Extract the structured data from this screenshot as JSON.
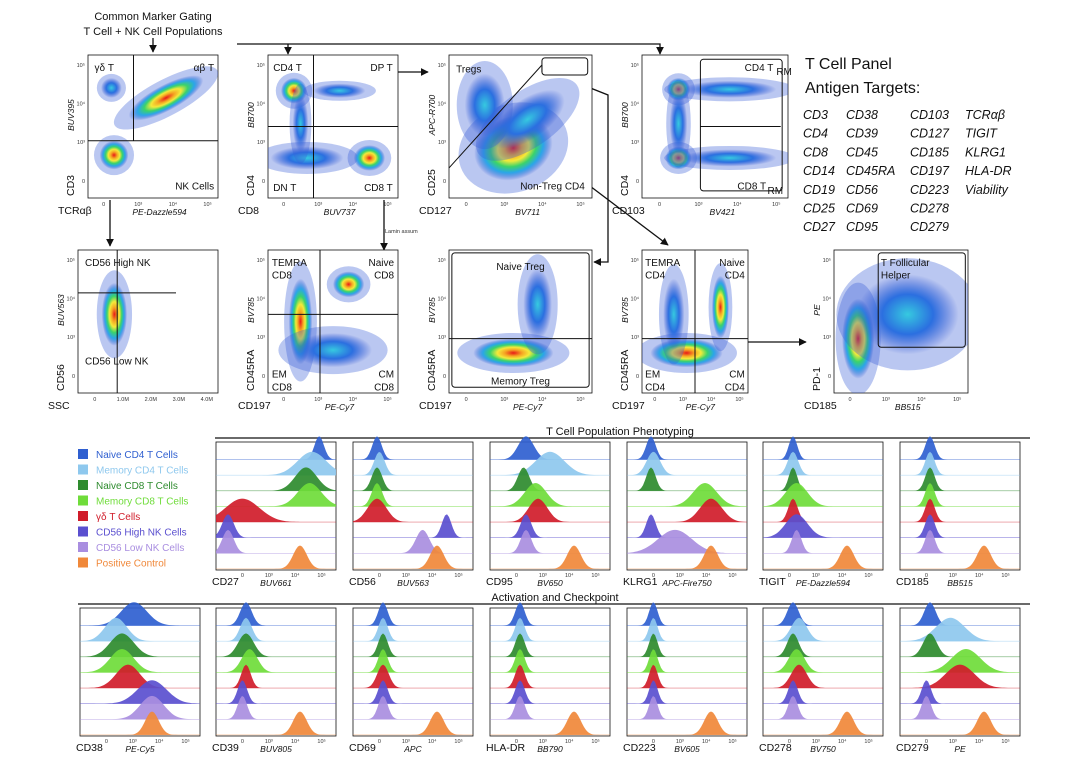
{
  "header": {
    "line1": "Common Marker Gating",
    "line2": "T Cell + NK Cell Populations"
  },
  "gating_panels": [
    {
      "id": "p1",
      "y_label": "CD3",
      "y_fluor": "BUV395",
      "x_label": "TCRαβ",
      "x_fluor": "PE-Dazzle594",
      "gates": [
        "γδ T",
        "αβ T",
        "NK Cells"
      ]
    },
    {
      "id": "p2",
      "y_label": "CD4",
      "y_fluor": "BB700",
      "x_label": "CD8",
      "x_fluor": "BUV737",
      "gates": [
        "CD4 T",
        "DP T",
        "DN T",
        "CD8 T"
      ]
    },
    {
      "id": "p3",
      "y_label": "CD25",
      "y_fluor": "APC-R700",
      "x_label": "CD127",
      "x_fluor": "BV711",
      "gates": [
        "Tregs",
        "Non-Treg CD4"
      ]
    },
    {
      "id": "p4",
      "y_label": "CD4",
      "y_fluor": "BB700",
      "x_label": "CD103",
      "x_fluor": "BV421",
      "gates": [
        "CD4 T",
        "RM",
        "CD8 T",
        "RM"
      ]
    },
    {
      "id": "p5",
      "y_label": "CD56",
      "y_fluor": "BUV563",
      "x_label": "SSC",
      "x_fluor": "",
      "gates": [
        "CD56 High NK",
        "CD56 Low NK"
      ]
    },
    {
      "id": "p6",
      "y_label": "CD45RA",
      "y_fluor": "BV785",
      "x_label": "CD197",
      "x_fluor": "PE-Cy7",
      "gates": [
        "TEMRA",
        "CD8",
        "Naive",
        "CD8",
        "EM",
        "CD8",
        "CM",
        "CD8"
      ]
    },
    {
      "id": "p7",
      "y_label": "CD45RA",
      "y_fluor": "BV785",
      "x_label": "CD197",
      "x_fluor": "PE-Cy7",
      "gates": [
        "Naive Treg",
        "Memory Treg"
      ]
    },
    {
      "id": "p8",
      "y_label": "CD45RA",
      "y_fluor": "BV785",
      "x_label": "CD197",
      "x_fluor": "PE-Cy7",
      "gates": [
        "TEMRA",
        "CD4",
        "Naive",
        "CD4",
        "EM",
        "CD4",
        "CM",
        "CD4"
      ]
    },
    {
      "id": "p9",
      "y_label": "PD-1",
      "y_fluor": "PE",
      "x_label": "CD185",
      "x_fluor": "BB515",
      "gates": [
        "T Follicular",
        "Helper"
      ]
    }
  ],
  "ticks": {
    "log": [
      "0",
      "10³",
      "10⁴",
      "10⁵"
    ],
    "ssc": [
      "0",
      "1.0M",
      "2.0M",
      "3.0M",
      "4.0M"
    ]
  },
  "tiny_label": "Lamin assum",
  "antigen_panel": {
    "title1": "T Cell Panel",
    "title2": "Antigen Targets:",
    "columns": [
      [
        "CD3",
        "CD4",
        "CD8",
        "CD14",
        "CD19",
        "CD25",
        "CD27"
      ],
      [
        "CD38",
        "CD39",
        "CD45",
        "CD45RA",
        "CD56",
        "CD69",
        "CD95"
      ],
      [
        "CD103",
        "CD127",
        "CD185",
        "CD197",
        "CD223",
        "CD278",
        "CD279"
      ],
      [
        "TCRαβ",
        "TIGIT",
        "KLRG1",
        "HLA-DR",
        "Viability"
      ]
    ]
  },
  "legend": [
    {
      "label": "Naive CD4 T Cells",
      "color": "#2f5fd0"
    },
    {
      "label": "Memory CD4 T Cells",
      "color": "#8ec8ee"
    },
    {
      "label": "Naive CD8 T Cells",
      "color": "#2e8b2e"
    },
    {
      "label": "Memory CD8 T Cells",
      "color": "#6fdc3a"
    },
    {
      "label": "γδ T Cells",
      "color": "#d01c2a"
    },
    {
      "label": "CD56 High NK Cells",
      "color": "#5a4fcf"
    },
    {
      "label": "CD56 Low NK Cells",
      "color": "#a98ee0"
    },
    {
      "label": "Positive Control",
      "color": "#f0883a"
    }
  ],
  "section1_title": "T Cell Population Phenotyping",
  "section2_title": "Activation and Checkpoint",
  "histogram_rows": [
    {
      "panels": [
        {
          "marker": "CD27",
          "fluor": "BUV661",
          "peaks": [
            0.86,
            0.8,
            0.75,
            0.78,
            0.22,
            0.1,
            0.1
          ],
          "widths": [
            0.06,
            0.25,
            0.18,
            0.2,
            0.3,
            0.08,
            0.08
          ]
        },
        {
          "marker": "CD56",
          "fluor": "BUV563",
          "peaks": [
            0.2,
            0.22,
            0.2,
            0.2,
            0.2,
            0.78,
            0.58
          ],
          "widths": [
            0.06,
            0.07,
            0.07,
            0.07,
            0.15,
            0.06,
            0.1
          ]
        },
        {
          "marker": "CD95",
          "fluor": "BV650",
          "peaks": [
            0.3,
            0.5,
            0.28,
            0.38,
            0.4,
            0.3,
            0.3
          ],
          "widths": [
            0.12,
            0.25,
            0.08,
            0.18,
            0.15,
            0.07,
            0.07
          ]
        },
        {
          "marker": "KLRG1",
          "fluor": "APC-Fire750",
          "peaks": [
            0.2,
            0.22,
            0.2,
            0.65,
            0.7,
            0.2,
            0.4
          ],
          "widths": [
            0.06,
            0.1,
            0.06,
            0.2,
            0.18,
            0.06,
            0.3
          ]
        },
        {
          "marker": "TIGIT",
          "fluor": "PE-Dazzle594",
          "peaks": [
            0.25,
            0.25,
            0.25,
            0.28,
            0.25,
            0.28,
            0.28
          ],
          "widths": [
            0.05,
            0.07,
            0.05,
            0.18,
            0.06,
            0.18,
            0.06
          ]
        },
        {
          "marker": "CD185",
          "fluor": "BB515",
          "peaks": [
            0.25,
            0.25,
            0.25,
            0.25,
            0.25,
            0.25,
            0.25
          ],
          "widths": [
            0.06,
            0.06,
            0.06,
            0.06,
            0.06,
            0.06,
            0.06
          ]
        }
      ]
    },
    {
      "panels": [
        {
          "marker": "CD38",
          "fluor": "PE-Cy5",
          "peaks": [
            0.45,
            0.3,
            0.35,
            0.35,
            0.4,
            0.6,
            0.6
          ],
          "widths": [
            0.22,
            0.18,
            0.2,
            0.2,
            0.2,
            0.25,
            0.2
          ]
        },
        {
          "marker": "CD39",
          "fluor": "BUV805",
          "peaks": [
            0.25,
            0.25,
            0.25,
            0.28,
            0.25,
            0.22,
            0.22
          ],
          "widths": [
            0.08,
            0.08,
            0.12,
            0.12,
            0.06,
            0.06,
            0.06
          ]
        },
        {
          "marker": "CD69",
          "fluor": "APC",
          "peaks": [
            0.25,
            0.25,
            0.25,
            0.25,
            0.25,
            0.25,
            0.25
          ],
          "widths": [
            0.06,
            0.06,
            0.06,
            0.06,
            0.08,
            0.06,
            0.06
          ]
        },
        {
          "marker": "HLA-DR",
          "fluor": "BB790",
          "peaks": [
            0.25,
            0.25,
            0.25,
            0.25,
            0.25,
            0.25,
            0.25
          ],
          "widths": [
            0.06,
            0.06,
            0.06,
            0.06,
            0.06,
            0.06,
            0.06
          ]
        },
        {
          "marker": "CD223",
          "fluor": "BV605",
          "peaks": [
            0.22,
            0.22,
            0.22,
            0.22,
            0.22,
            0.22,
            0.22
          ],
          "widths": [
            0.05,
            0.05,
            0.05,
            0.05,
            0.05,
            0.05,
            0.05
          ]
        },
        {
          "marker": "CD278",
          "fluor": "BV750",
          "peaks": [
            0.25,
            0.3,
            0.25,
            0.28,
            0.3,
            0.25,
            0.25
          ],
          "widths": [
            0.08,
            0.12,
            0.08,
            0.12,
            0.12,
            0.06,
            0.06
          ]
        },
        {
          "marker": "CD279",
          "fluor": "PE",
          "peaks": [
            0.25,
            0.42,
            0.25,
            0.55,
            0.5,
            0.22,
            0.22
          ],
          "widths": [
            0.08,
            0.25,
            0.1,
            0.25,
            0.25,
            0.06,
            0.06
          ]
        }
      ]
    }
  ]
}
